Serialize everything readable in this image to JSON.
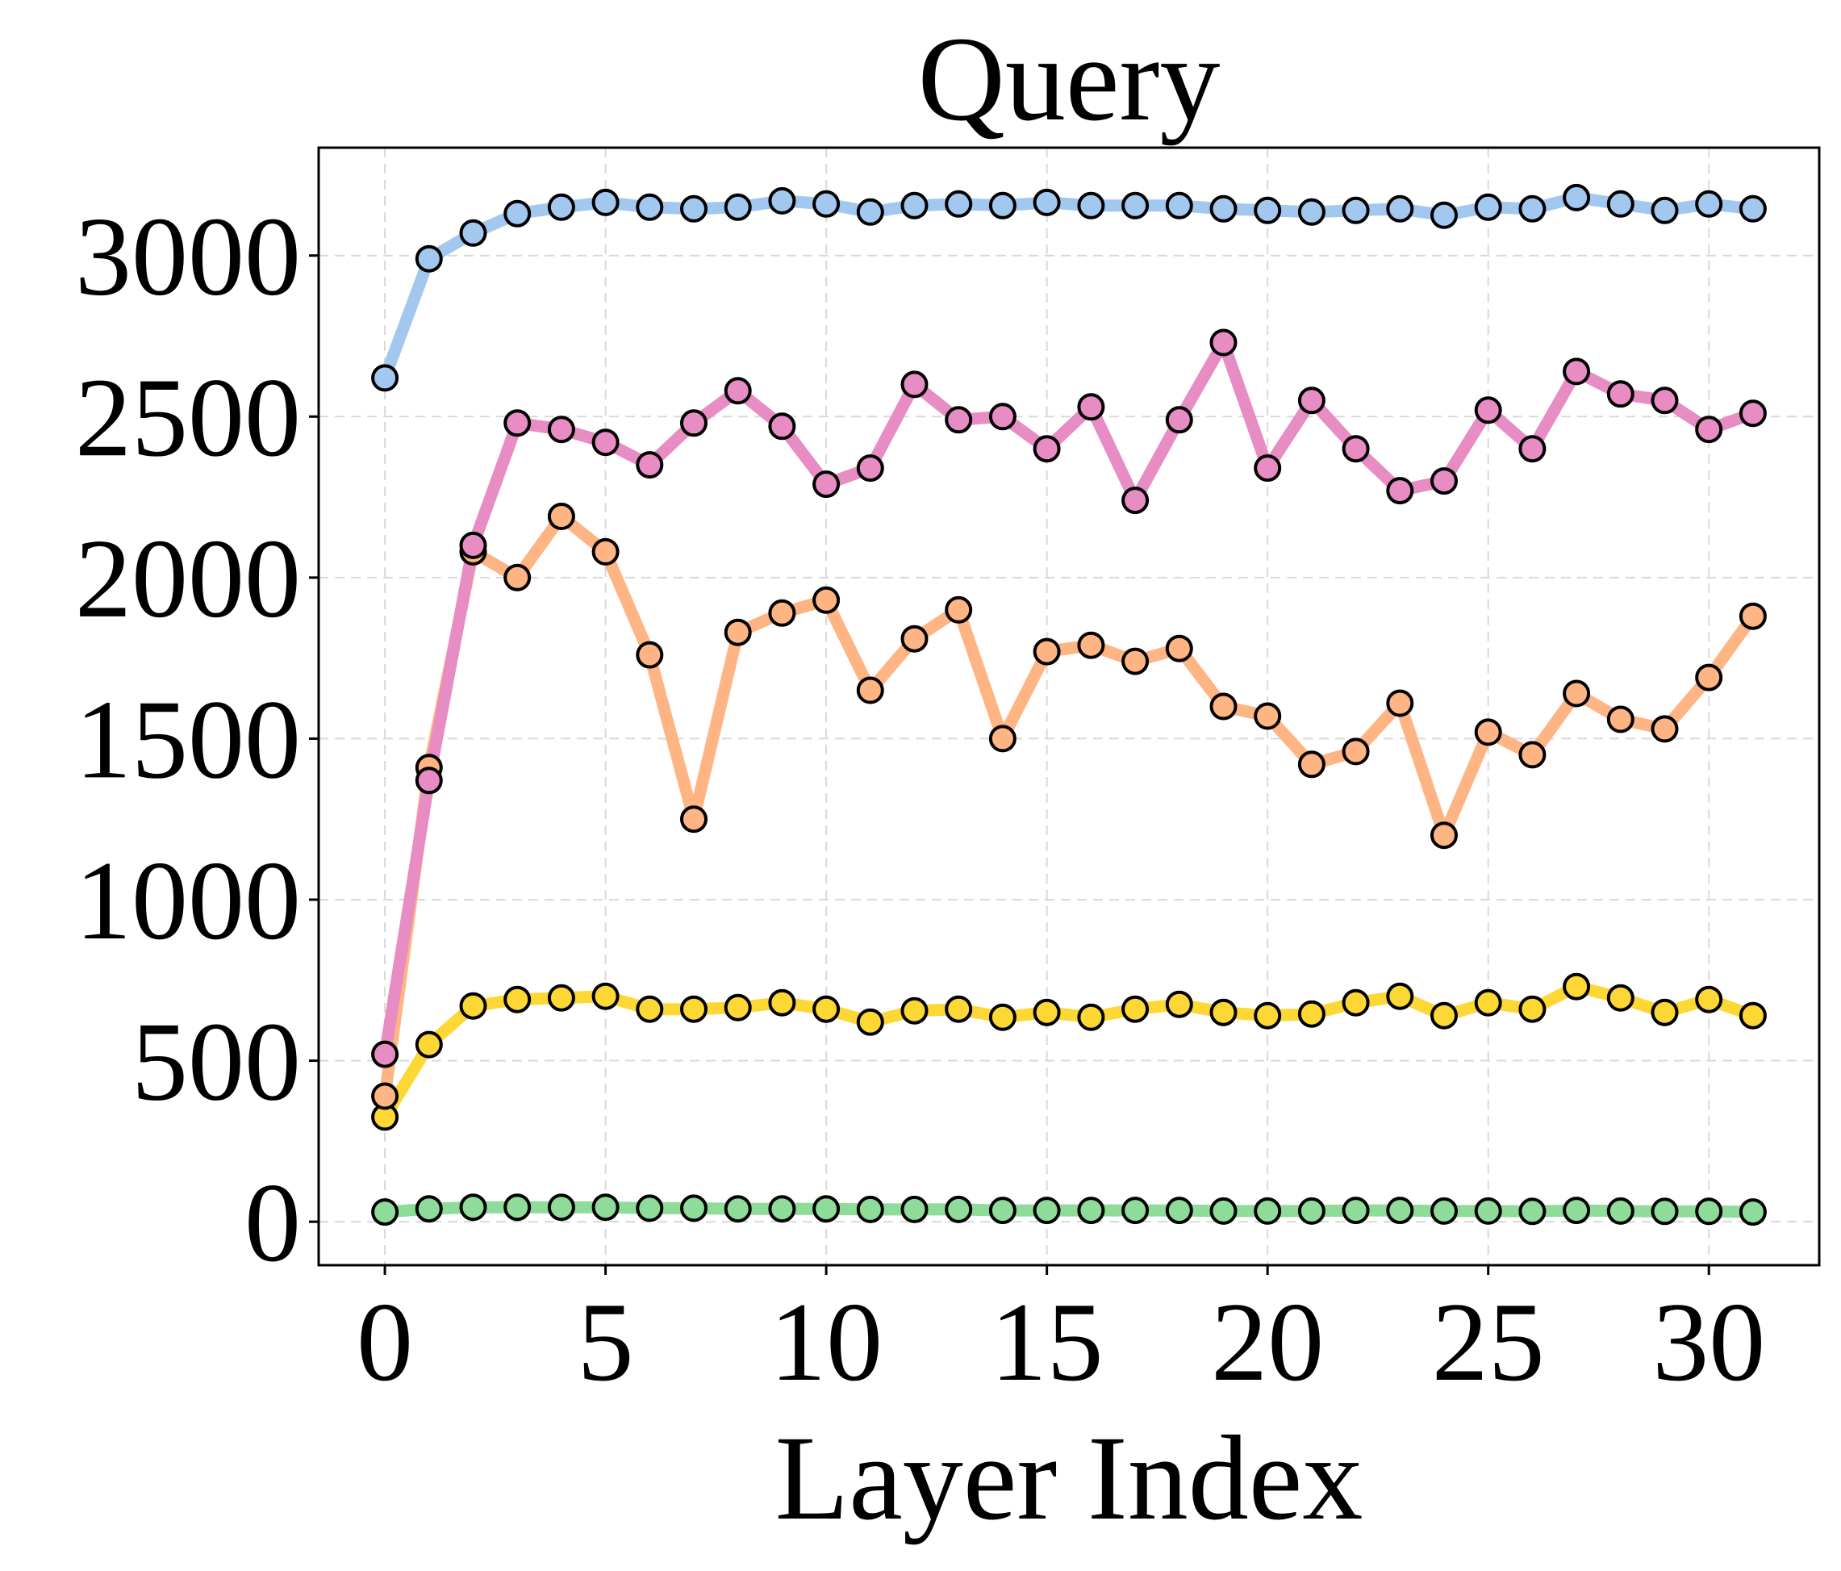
{
  "chart_data": {
    "type": "line",
    "title": "Query",
    "xlabel": "Layer Index",
    "ylabel": "",
    "xlim": [
      -1.5,
      32.5
    ],
    "ylim": [
      -135,
      3335
    ],
    "xticks": [
      0,
      5,
      10,
      15,
      20,
      25,
      30
    ],
    "yticks": [
      0,
      500,
      1000,
      1500,
      2000,
      2500,
      3000
    ],
    "grid": true,
    "x": [
      0,
      1,
      2,
      3,
      4,
      5,
      6,
      7,
      8,
      9,
      10,
      11,
      12,
      13,
      14,
      15,
      16,
      17,
      18,
      19,
      20,
      21,
      22,
      23,
      24,
      25,
      26,
      27,
      28,
      29,
      30,
      31
    ],
    "series": [
      {
        "color": "#a2c8f0",
        "values": [
          2620,
          2990,
          3070,
          3130,
          3150,
          3165,
          3150,
          3145,
          3150,
          3170,
          3160,
          3135,
          3155,
          3160,
          3155,
          3165,
          3155,
          3155,
          3155,
          3145,
          3140,
          3135,
          3140,
          3145,
          3125,
          3150,
          3145,
          3180,
          3160,
          3140,
          3160,
          3145
        ]
      },
      {
        "color": "#e88cc4",
        "values": [
          520,
          1370,
          2100,
          2480,
          2460,
          2420,
          2350,
          2480,
          2580,
          2470,
          2290,
          2340,
          2600,
          2490,
          2500,
          2400,
          2530,
          2240,
          2490,
          2730,
          2340,
          2550,
          2400,
          2270,
          2300,
          2520,
          2400,
          2640,
          2570,
          2550,
          2460,
          2510
        ]
      },
      {
        "color": "#ffb483",
        "values": [
          390,
          1410,
          2080,
          2000,
          2190,
          2080,
          1760,
          1250,
          1830,
          1890,
          1930,
          1650,
          1810,
          1900,
          1500,
          1770,
          1790,
          1740,
          1780,
          1600,
          1570,
          1420,
          1460,
          1610,
          1200,
          1520,
          1450,
          1640,
          1560,
          1530,
          1690,
          1880
        ]
      },
      {
        "color": "#fdd835",
        "values": [
          325,
          550,
          670,
          690,
          695,
          700,
          660,
          660,
          665,
          680,
          660,
          620,
          655,
          660,
          635,
          650,
          635,
          660,
          675,
          650,
          640,
          645,
          680,
          700,
          640,
          680,
          660,
          730,
          695,
          650,
          690,
          640
        ]
      },
      {
        "color": "#8fdc9a",
        "values": [
          30,
          40,
          45,
          45,
          45,
          45,
          42,
          42,
          40,
          40,
          40,
          38,
          38,
          38,
          35,
          35,
          35,
          35,
          35,
          33,
          33,
          33,
          35,
          35,
          33,
          33,
          32,
          35,
          33,
          32,
          32,
          30
        ]
      }
    ]
  }
}
